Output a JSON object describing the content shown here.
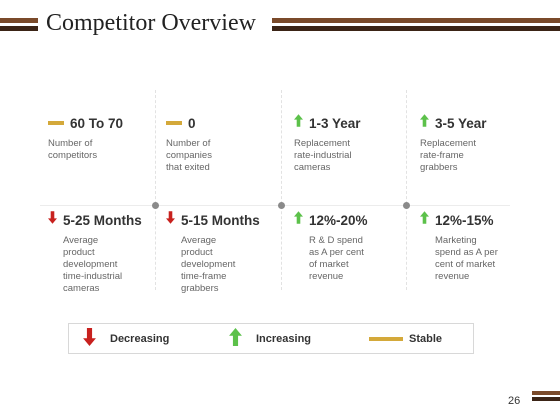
{
  "header": {
    "title": "Competitor Overview"
  },
  "colors": {
    "decreasing": "#c8211e",
    "increasing": "#5cc14a",
    "stable": "#d4a93a",
    "brand_dark": "#3b2416",
    "brand_brown": "#7a4a2a"
  },
  "row1": [
    {
      "value": "60 To 70",
      "trend": "stable",
      "desc": [
        "Number of",
        "competitors"
      ]
    },
    {
      "value": "0",
      "trend": "stable",
      "desc": [
        "Number of",
        "companies",
        "that exited"
      ]
    },
    {
      "value": "1-3 Year",
      "trend": "increasing",
      "desc": [
        "Replacement",
        "rate-industrial",
        "cameras"
      ]
    },
    {
      "value": "3-5 Year",
      "trend": "increasing",
      "desc": [
        "Replacement",
        "rate-frame",
        "grabbers"
      ]
    }
  ],
  "row2": [
    {
      "value": "5-25 Months",
      "trend": "decreasing",
      "desc": [
        "Average",
        "product",
        "development",
        "time-industrial",
        "cameras"
      ]
    },
    {
      "value": "5-15 Months",
      "trend": "decreasing",
      "desc": [
        "Average",
        "product",
        "development",
        "time-frame",
        "grabbers"
      ]
    },
    {
      "value": "12%-20%",
      "trend": "increasing",
      "desc": [
        "R & D spend",
        "as A per cent",
        "of market",
        "revenue"
      ]
    },
    {
      "value": "12%-15%",
      "trend": "increasing",
      "desc": [
        "Marketing",
        "spend as A per",
        "cent of market",
        "revenue"
      ]
    }
  ],
  "legend": {
    "decreasing": "Decreasing",
    "increasing": "Increasing",
    "stable": "Stable"
  },
  "footer": {
    "page_number": "26"
  }
}
